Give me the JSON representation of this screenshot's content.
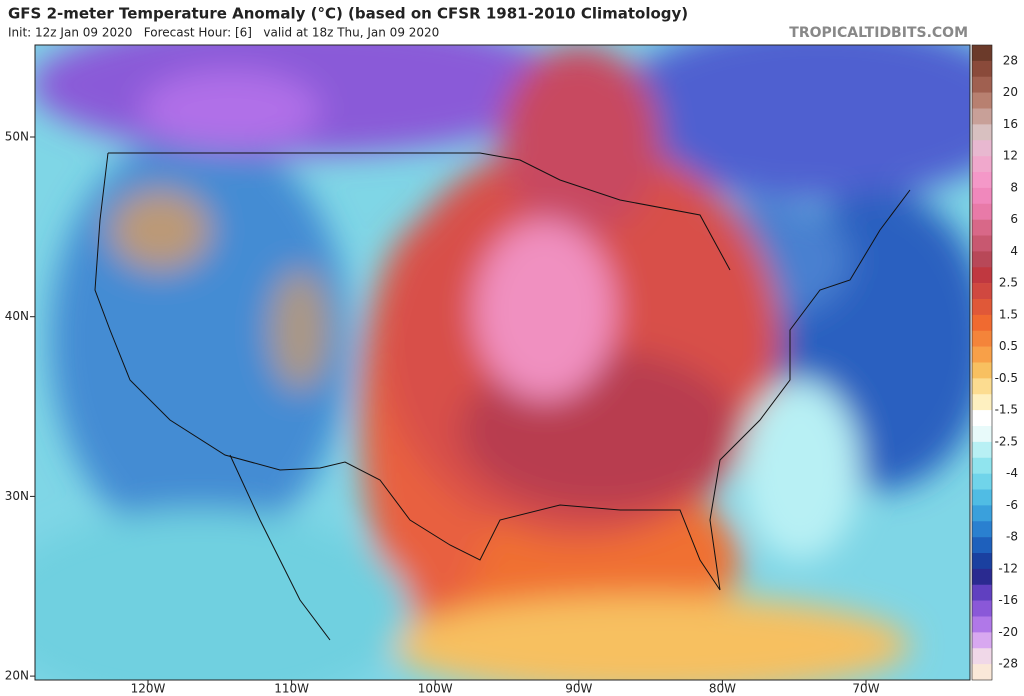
{
  "header": {
    "title": "GFS 2-meter Temperature Anomaly (°C) (based on CFSR 1981-2010 Climatology)",
    "subtitle": "Init: 12z Jan 09 2020   Forecast Hour: [6]   valid at 18z Thu, Jan 09 2020",
    "watermark": "TROPICALTIDBITS.COM"
  },
  "map": {
    "lat_labels": [
      "50N",
      "40N",
      "30N",
      "20N"
    ],
    "lon_labels": [
      "120W",
      "110W",
      "100W",
      "90W",
      "80W",
      "70W"
    ]
  },
  "colorbar": {
    "labels": [
      "28",
      "20",
      "16",
      "12",
      "8",
      "6",
      "4",
      "2.5",
      "1.5",
      "0.5",
      "-0.5",
      "-1.5",
      "-2.5",
      "-4",
      "-6",
      "-8",
      "-12",
      "-16",
      "-20",
      "-28"
    ],
    "colors": [
      "#6b3a2a",
      "#8a4a3a",
      "#a06050",
      "#b88070",
      "#c8a098",
      "#d8c0c0",
      "#e8b8d0",
      "#f0a8cc",
      "#f498c8",
      "#f088bc",
      "#e87aa8",
      "#d86888",
      "#c85870",
      "#b84858",
      "#c03840",
      "#d04840",
      "#e05838",
      "#f06a30",
      "#f4843a",
      "#f8a048",
      "#f8c060",
      "#fcdc90",
      "#fef0c0",
      "#ffffff",
      "#e8fafa",
      "#b8f0f4",
      "#90e4ee",
      "#70d4ea",
      "#50bce4",
      "#3aa0dc",
      "#2a80d0",
      "#1e60bc",
      "#1a40a0",
      "#2a2a90",
      "#6040c0",
      "#8a58d8",
      "#b078e8",
      "#d8a8f0",
      "#f0d8e8",
      "#fae8d8"
    ]
  }
}
